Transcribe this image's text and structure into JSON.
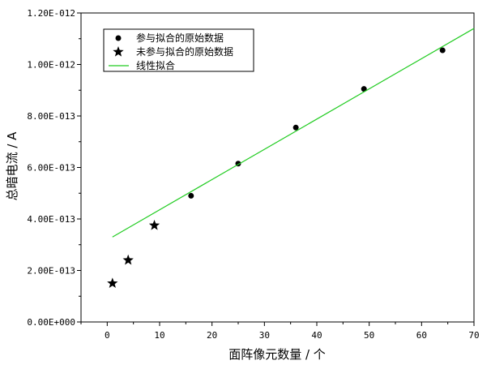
{
  "chart_data": {
    "type": "scatter",
    "xlabel": "面阵像元数量 / 个",
    "ylabel": "总暗电流 / A",
    "xlim": [
      -5,
      70
    ],
    "ylim": [
      0,
      1.2e-12
    ],
    "x_ticks": [
      0,
      10,
      20,
      30,
      40,
      50,
      60,
      70
    ],
    "x_tick_labels": [
      "0",
      "10",
      "20",
      "30",
      "40",
      "50",
      "60",
      "70"
    ],
    "y_ticks": [
      0,
      2e-13,
      4e-13,
      6e-13,
      8e-13,
      1e-12,
      1.2e-12
    ],
    "y_tick_labels": [
      "0.00E+000",
      "2.00E-013",
      "4.00E-013",
      "6.00E-013",
      "8.00E-013",
      "1.00E-012",
      "1.20E-012"
    ],
    "legend_position": "top-left",
    "grid": false,
    "series": [
      {
        "name": "参与拟合的原始数据",
        "marker": "circle",
        "color": "#000000",
        "x": [
          16,
          25,
          36,
          49,
          64
        ],
        "y": [
          4.9e-13,
          6.15e-13,
          7.55e-13,
          9.05e-13,
          1.055e-12
        ]
      },
      {
        "name": "未参与拟合的原始数据",
        "marker": "star",
        "color": "#000000",
        "x": [
          1,
          4,
          9
        ],
        "y": [
          1.5e-13,
          2.4e-13,
          3.75e-13
        ]
      },
      {
        "name": "线性拟合",
        "marker": "line",
        "color": "#22cc22",
        "x": [
          1,
          70
        ],
        "y": [
          3.3e-13,
          1.14e-12
        ]
      }
    ]
  }
}
